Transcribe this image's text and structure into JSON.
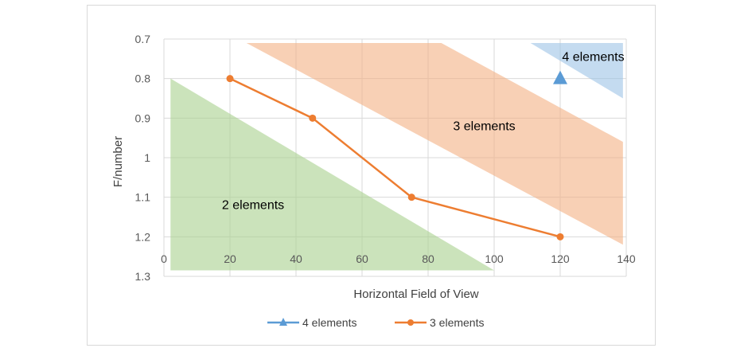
{
  "chart_data": {
    "type": "line",
    "xlabel": "Horizontal Field of View",
    "ylabel": "F/number",
    "xlim": [
      0,
      140
    ],
    "ylim": [
      0.7,
      1.3
    ],
    "y_inverted": true,
    "x_ticks": [
      "0",
      "20",
      "40",
      "60",
      "80",
      "100",
      "120",
      "140"
    ],
    "y_ticks": [
      "0.7",
      "0.8",
      "0.9",
      "1",
      "1.1",
      "1.2",
      "1.3"
    ],
    "grid": true,
    "legend_position": "bottom",
    "series": [
      {
        "name": "4 elements",
        "marker": "triangle",
        "color": "#5b9bd5",
        "x": [
          120
        ],
        "y": [
          0.8
        ]
      },
      {
        "name": "3 elements",
        "marker": "circle",
        "color": "#ed7d31",
        "x": [
          20,
          45,
          75,
          120
        ],
        "y": [
          0.8,
          0.9,
          1.1,
          1.2
        ]
      }
    ],
    "regions": [
      {
        "label": "2 elements",
        "color": "#a9d18e",
        "label_x": 27,
        "label_y": 1.12,
        "polygon": [
          [
            2,
            0.8
          ],
          [
            2,
            1.285
          ],
          [
            100,
            1.285
          ]
        ]
      },
      {
        "label": "3 elements",
        "color": "#f4b183",
        "label_x": 97,
        "label_y": 0.92,
        "polygon": [
          [
            25,
            0.71
          ],
          [
            84,
            0.71
          ],
          [
            139,
            0.96
          ],
          [
            139,
            1.22
          ]
        ]
      },
      {
        "label": "4 elements",
        "color": "#9dc3e6",
        "label_x": 130,
        "label_y": 0.745,
        "polygon": [
          [
            111,
            0.71
          ],
          [
            139,
            0.71
          ],
          [
            139,
            0.85
          ]
        ]
      }
    ]
  }
}
